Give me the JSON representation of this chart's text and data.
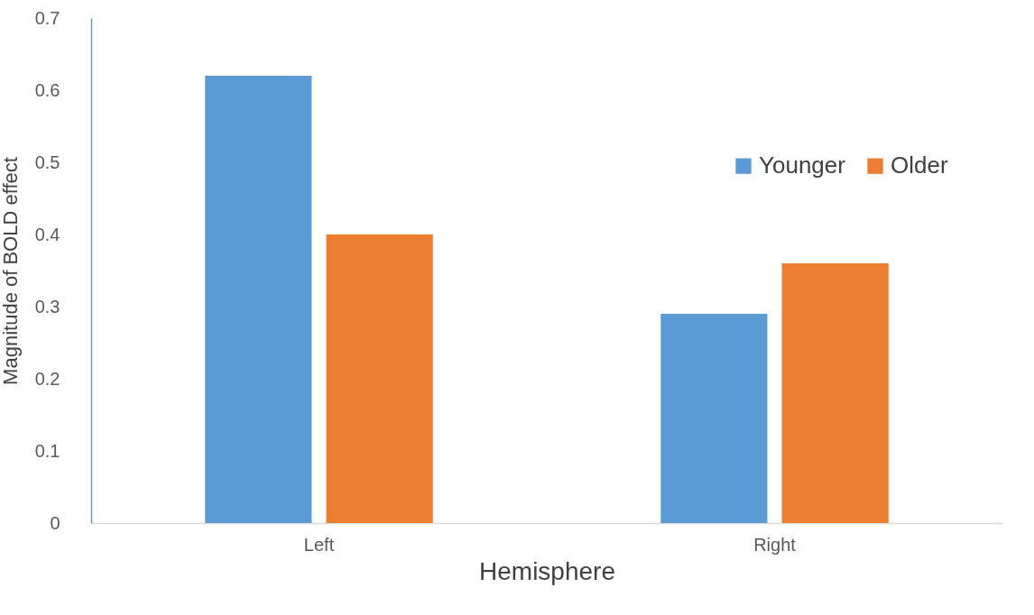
{
  "chart_data": {
    "type": "bar",
    "xlabel": "Hemisphere",
    "ylabel": "Magnitude of BOLD effect",
    "categories": [
      "Left",
      "Right"
    ],
    "series": [
      {
        "name": "Younger",
        "color": "#5b9bd5",
        "values": [
          0.62,
          0.29
        ]
      },
      {
        "name": "Older",
        "color": "#ed7d31",
        "values": [
          0.4,
          0.36
        ]
      }
    ],
    "ylim": [
      0,
      0.7
    ],
    "yticks": [
      0,
      0.1,
      0.2,
      0.3,
      0.4,
      0.5,
      0.6,
      0.7
    ],
    "grid": false,
    "legend": "right"
  }
}
